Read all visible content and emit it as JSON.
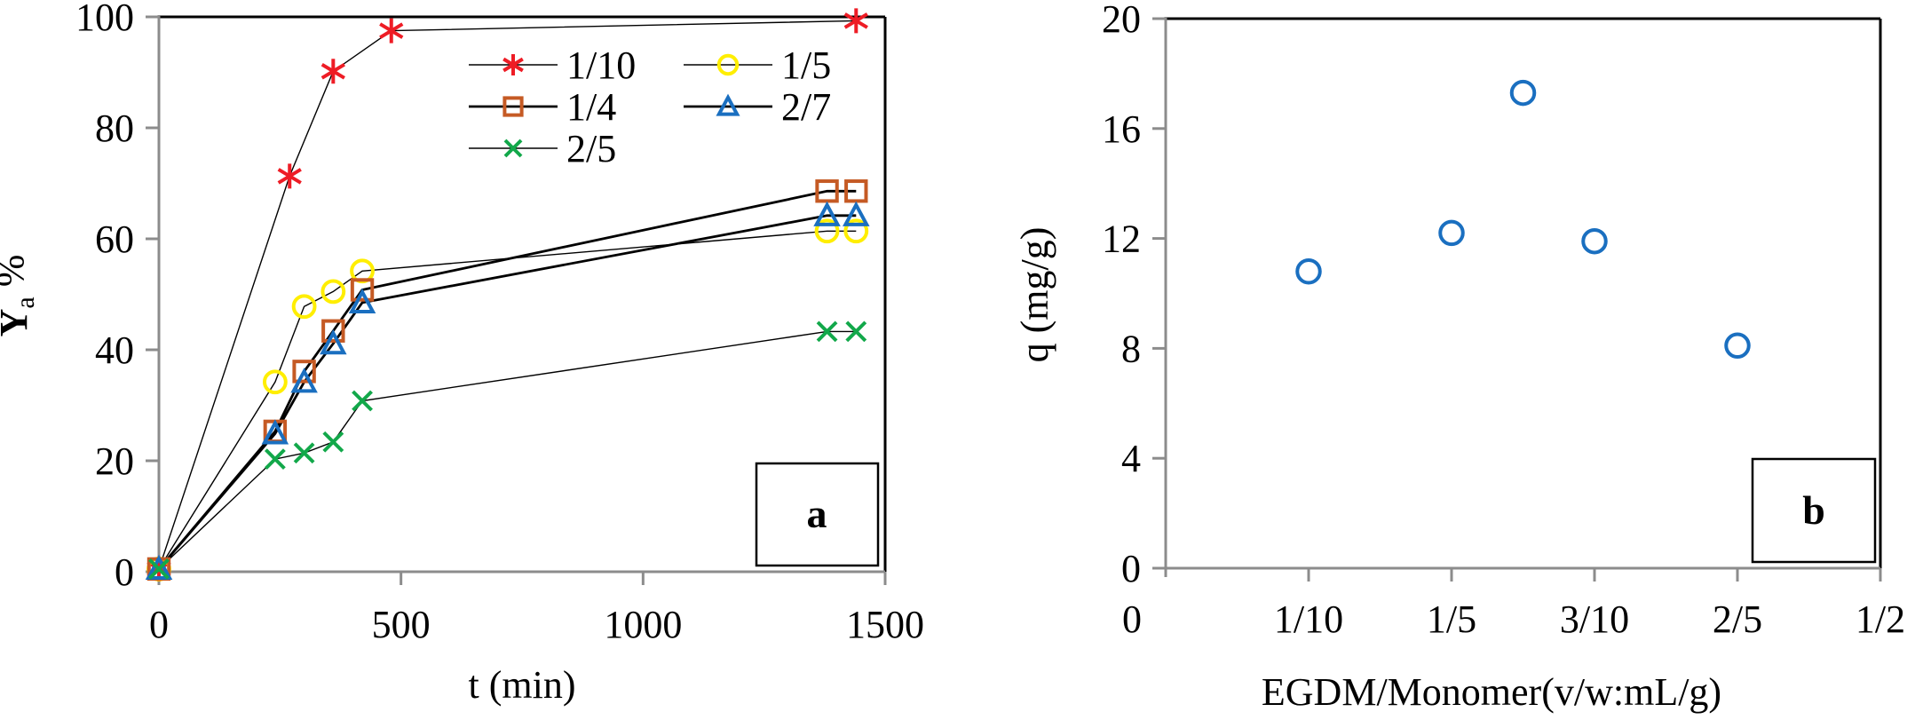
{
  "chart_data": [
    {
      "type": "line",
      "panel_label": "a",
      "xlabel": "t (min)",
      "ylabel": {
        "main": "Y",
        "subscript": "a",
        "suffix": " %"
      },
      "xlim": [
        0,
        1500
      ],
      "ylim": [
        0,
        100
      ],
      "xticks": [
        0,
        500,
        1000,
        1500
      ],
      "yticks": [
        0,
        20,
        40,
        60,
        80,
        100
      ],
      "grid": false,
      "legend_position": "top-right",
      "series": [
        {
          "name": "1/10",
          "marker": "asterisk",
          "color": "#ee1c25",
          "line_weight": "thin",
          "x": [
            0,
            270,
            360,
            480,
            1440
          ],
          "y": [
            0.5,
            71.3,
            90.2,
            97.5,
            99.3
          ]
        },
        {
          "name": "1/5",
          "marker": "circle",
          "color": "#ffee00",
          "line_weight": "thin",
          "x": [
            0,
            240,
            300,
            360,
            420,
            1380,
            1440
          ],
          "y": [
            0.5,
            34.2,
            47.8,
            50.5,
            54.2,
            61.4,
            61.4
          ]
        },
        {
          "name": "1/4",
          "marker": "square",
          "color": "#c55a24",
          "line_weight": "thick",
          "x": [
            0,
            240,
            300,
            360,
            420,
            1380,
            1440
          ],
          "y": [
            0.5,
            25.3,
            36.1,
            43.4,
            50.8,
            68.6,
            68.6
          ]
        },
        {
          "name": "2/7",
          "marker": "triangle",
          "color": "#1a6fc0",
          "line_weight": "thick",
          "x": [
            0,
            240,
            300,
            360,
            420,
            1380,
            1440
          ],
          "y": [
            0.5,
            24.9,
            34.2,
            41.1,
            48.5,
            64.2,
            64.2
          ]
        },
        {
          "name": "2/5",
          "marker": "x",
          "color": "#12a84a",
          "line_weight": "thin",
          "x": [
            0,
            240,
            300,
            360,
            420,
            1380,
            1440
          ],
          "y": [
            0.5,
            20.3,
            21.4,
            23.4,
            30.8,
            43.3,
            43.3
          ]
        }
      ]
    },
    {
      "type": "scatter",
      "panel_label": "b",
      "xlabel": "EGDM/Monomer(v/w:mL/g)",
      "ylabel": "q (mg/g)",
      "xlim": [
        0,
        0.5
      ],
      "ylim": [
        0,
        20
      ],
      "xticks": [
        0,
        0.1,
        0.2,
        0.3,
        0.4,
        0.5
      ],
      "xtick_labels": [
        "0",
        "1/10",
        "1/5",
        "3/10",
        "2/5",
        "1/2"
      ],
      "yticks": [
        0,
        4,
        8,
        12,
        16,
        20
      ],
      "grid": false,
      "series": [
        {
          "name": "q",
          "marker": "circle",
          "color": "#1a6fc0",
          "x": [
            0.1,
            0.2,
            0.25,
            0.3,
            0.4
          ],
          "y": [
            10.8,
            12.2,
            17.3,
            11.9,
            8.1
          ]
        }
      ]
    }
  ]
}
